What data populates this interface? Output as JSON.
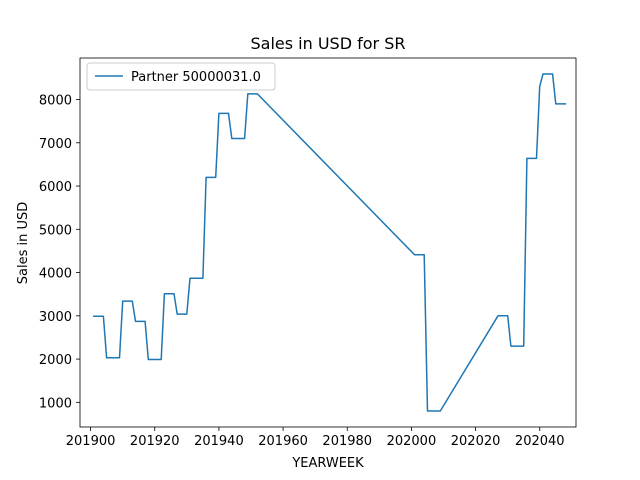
{
  "chart_data": {
    "type": "line",
    "title": "Sales in USD for SR",
    "xlabel": "YEARWEEK",
    "ylabel": "Sales in USD",
    "xlim": [
      201896.7,
      202051.3
    ],
    "ylim": [
      430,
      8960
    ],
    "xticks": [
      201900,
      201920,
      201940,
      201960,
      201980,
      202000,
      202020,
      202040
    ],
    "yticks": [
      1000,
      2000,
      3000,
      4000,
      5000,
      6000,
      7000,
      8000
    ],
    "grid": false,
    "legend_position": "upper-left",
    "series": [
      {
        "name": "Partner 50000031.0",
        "color": "#1f77b4",
        "x": [
          201901,
          201904,
          201905,
          201909,
          201910,
          201913,
          201914,
          201917,
          201918,
          201922,
          201923,
          201926,
          201927,
          201930,
          201931,
          201935,
          201936,
          201939,
          201940,
          201943,
          201944,
          201948,
          201949,
          201952,
          202001,
          202004,
          202005,
          202009,
          202027,
          202030,
          202031,
          202035,
          202036,
          202039,
          202040,
          202041,
          202044,
          202045,
          202048
        ],
        "values": [
          2990,
          2990,
          2030,
          2030,
          3340,
          3340,
          2870,
          2870,
          1990,
          1990,
          3510,
          3510,
          3040,
          3040,
          3870,
          3870,
          6200,
          6200,
          7680,
          7680,
          7100,
          7100,
          8130,
          8130,
          4410,
          4410,
          800,
          800,
          3000,
          3000,
          2300,
          2300,
          6640,
          6640,
          8300,
          8590,
          8590,
          7900,
          7900
        ]
      }
    ]
  }
}
